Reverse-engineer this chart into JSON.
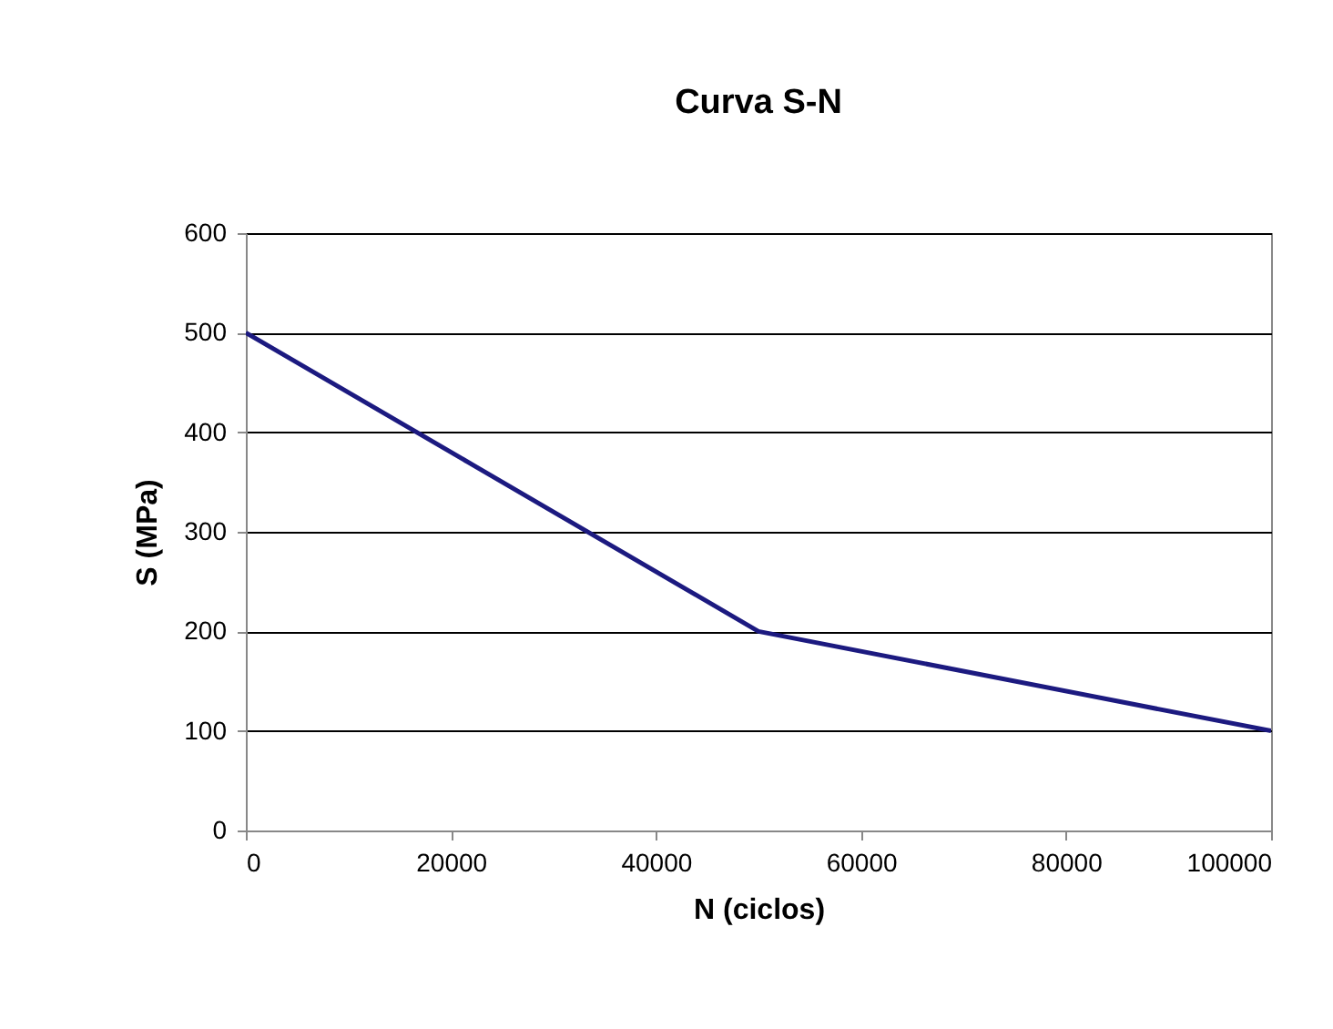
{
  "chart_data": {
    "type": "line",
    "title": "Curva S-N",
    "xlabel": "N (ciclos)",
    "ylabel": "S (MPa)",
    "x": [
      0,
      50000,
      100000
    ],
    "series": [
      {
        "color": "#1c1a80",
        "values": [
          500,
          200,
          100
        ]
      }
    ],
    "xlim": [
      0,
      100000
    ],
    "xticks": [
      0,
      20000,
      40000,
      60000,
      80000,
      100000
    ],
    "ylim": [
      0,
      600
    ],
    "yticks": [
      0,
      100,
      200,
      300,
      400,
      500,
      600
    ],
    "grid": "y",
    "marker": "none",
    "line_style": "solid"
  }
}
